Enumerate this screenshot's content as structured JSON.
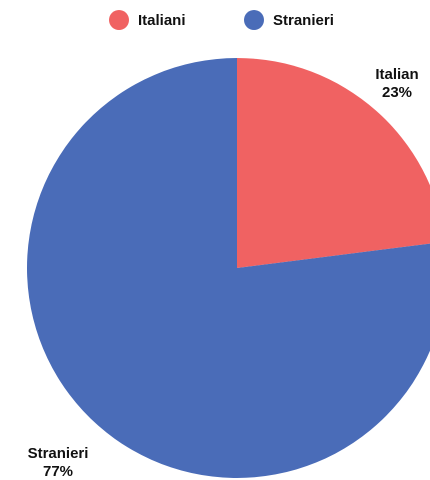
{
  "chart_data": {
    "type": "pie",
    "categories": [
      "Italiani",
      "Stranieri"
    ],
    "values": [
      23,
      77
    ],
    "colors": [
      "#f06262",
      "#4a6cb8"
    ],
    "legend_position": "top-center",
    "slice_labels": [
      {
        "name": "Italian",
        "value": "23%"
      },
      {
        "name": "Stranieri",
        "value": "77%"
      }
    ]
  },
  "legend": [
    {
      "label": "Italiani",
      "color": "#f06262"
    },
    {
      "label": "Stranieri",
      "color": "#4a6cb8"
    }
  ]
}
